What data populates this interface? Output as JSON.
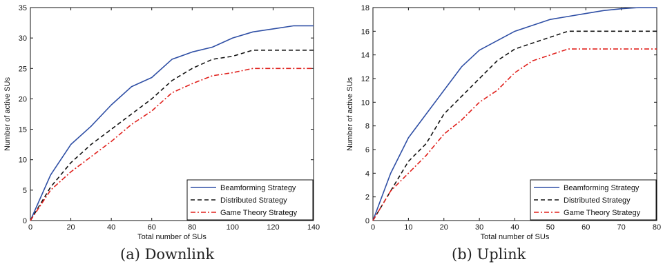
{
  "chart_data": [
    {
      "type": "line",
      "caption": "(a) Downlink",
      "xlabel": "Total number of SUs",
      "ylabel": "Number of active SUs",
      "xlim": [
        0,
        140
      ],
      "ylim": [
        0,
        35
      ],
      "xticks": [
        0,
        20,
        40,
        60,
        80,
        100,
        120,
        140
      ],
      "yticks": [
        0,
        5,
        10,
        15,
        20,
        25,
        30,
        35
      ],
      "grid": false,
      "legend_position": "bottom-right",
      "series": [
        {
          "name": "Beamforming Strategy",
          "color": "#2f4fa5",
          "dash": "solid",
          "x": [
            0,
            10,
            20,
            30,
            40,
            50,
            60,
            70,
            80,
            90,
            100,
            110,
            120,
            130,
            140
          ],
          "y": [
            0,
            7.5,
            12.5,
            15.5,
            19,
            22,
            23.5,
            26.5,
            27.7,
            28.5,
            30,
            31,
            31.5,
            32,
            32
          ]
        },
        {
          "name": "Distributed Strategy",
          "color": "#111111",
          "dash": "dashed",
          "x": [
            0,
            10,
            20,
            30,
            40,
            50,
            60,
            70,
            80,
            90,
            100,
            110,
            120,
            130,
            140
          ],
          "y": [
            0,
            5.5,
            9.5,
            12.5,
            15,
            17.5,
            20,
            23,
            25,
            26.5,
            27,
            28,
            28,
            28,
            28
          ]
        },
        {
          "name": "Game Theory Strategy",
          "color": "#e0201c",
          "dash": "dashdot",
          "x": [
            0,
            10,
            20,
            30,
            40,
            50,
            60,
            70,
            80,
            90,
            100,
            110,
            120,
            130,
            140
          ],
          "y": [
            0,
            5,
            8,
            10.5,
            13,
            15.8,
            18,
            21,
            22.5,
            23.8,
            24.3,
            25,
            25,
            25,
            25
          ]
        }
      ]
    },
    {
      "type": "line",
      "caption": "(b) Uplink",
      "xlabel": "Total number of SUs",
      "ylabel": "Number of active SUs",
      "xlim": [
        0,
        80
      ],
      "ylim": [
        0,
        18
      ],
      "xticks": [
        0,
        10,
        20,
        30,
        40,
        50,
        60,
        70,
        80
      ],
      "yticks": [
        0,
        2,
        4,
        6,
        8,
        10,
        12,
        14,
        16,
        18
      ],
      "grid": false,
      "legend_position": "bottom-right",
      "series": [
        {
          "name": "Beamforming Strategy",
          "color": "#2f4fa5",
          "dash": "solid",
          "x": [
            0,
            5,
            10,
            15,
            20,
            25,
            30,
            35,
            40,
            45,
            50,
            55,
            60,
            65,
            70,
            75,
            80
          ],
          "y": [
            0,
            4,
            7,
            9,
            11,
            13,
            14.4,
            15.2,
            16,
            16.5,
            17,
            17.25,
            17.5,
            17.75,
            17.9,
            18,
            18
          ]
        },
        {
          "name": "Distributed Strategy",
          "color": "#111111",
          "dash": "dashed",
          "x": [
            0,
            5,
            10,
            15,
            20,
            25,
            30,
            35,
            40,
            45,
            50,
            55,
            60,
            65,
            70,
            75,
            80
          ],
          "y": [
            0,
            2.5,
            5,
            6.5,
            9,
            10.5,
            12,
            13.5,
            14.5,
            15,
            15.5,
            16,
            16,
            16,
            16,
            16,
            16
          ]
        },
        {
          "name": "Game Theory Strategy",
          "color": "#e0201c",
          "dash": "dashdot",
          "x": [
            0,
            5,
            10,
            15,
            20,
            25,
            30,
            35,
            40,
            45,
            50,
            55,
            60,
            65,
            70,
            75,
            80
          ],
          "y": [
            0,
            2.5,
            4,
            5.5,
            7.3,
            8.5,
            10,
            11,
            12.5,
            13.5,
            14,
            14.5,
            14.5,
            14.5,
            14.5,
            14.5,
            14.5
          ]
        }
      ]
    }
  ]
}
